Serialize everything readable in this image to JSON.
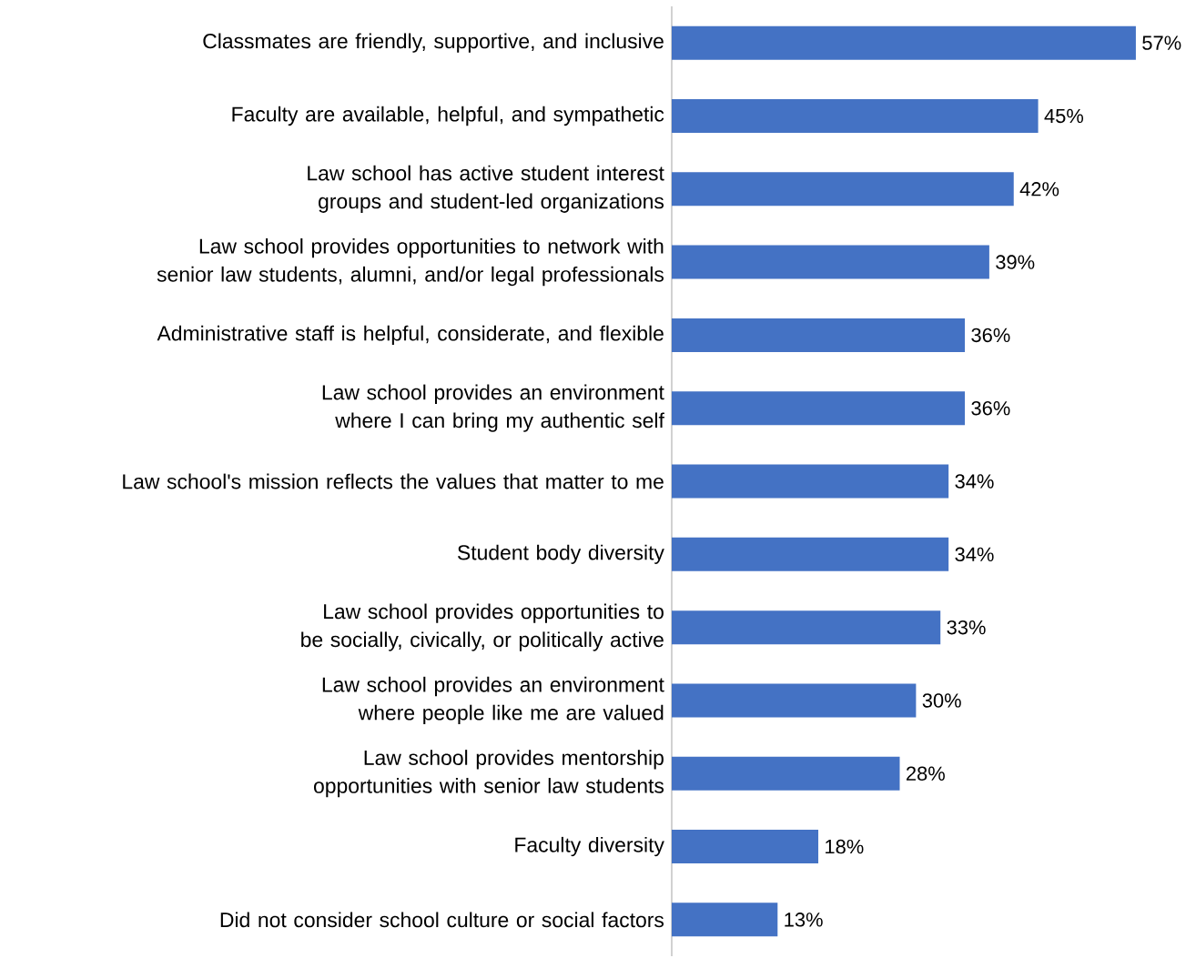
{
  "chart_data": {
    "type": "bar",
    "orientation": "horizontal",
    "categories": [
      "Classmates are friendly, supportive, and inclusive",
      "Faculty are available, helpful, and sympathetic",
      "Law school has active student interest groups and student-led organizations",
      "Law school provides opportunities to network with senior law students, alumni, and/or legal professionals",
      "Administrative staff is helpful, considerate, and flexible",
      "Law school provides an environment where I can bring my authentic self",
      "Law school's mission reflects the values that matter to me",
      "Student body diversity",
      "Law school provides opportunities to be socially, civically, or politically active",
      "Law school provides an environment where people like me are valued",
      "Law school provides mentorship opportunities with senior law students",
      "Faculty diversity",
      "Did not consider school culture or social factors"
    ],
    "values": [
      57,
      45,
      42,
      39,
      36,
      36,
      34,
      34,
      33,
      30,
      28,
      18,
      13
    ],
    "value_labels": [
      "57%",
      "45%",
      "42%",
      "39%",
      "36%",
      "36%",
      "34%",
      "34%",
      "33%",
      "30%",
      "28%",
      "18%",
      "13%"
    ],
    "color": "#4472c4"
  }
}
